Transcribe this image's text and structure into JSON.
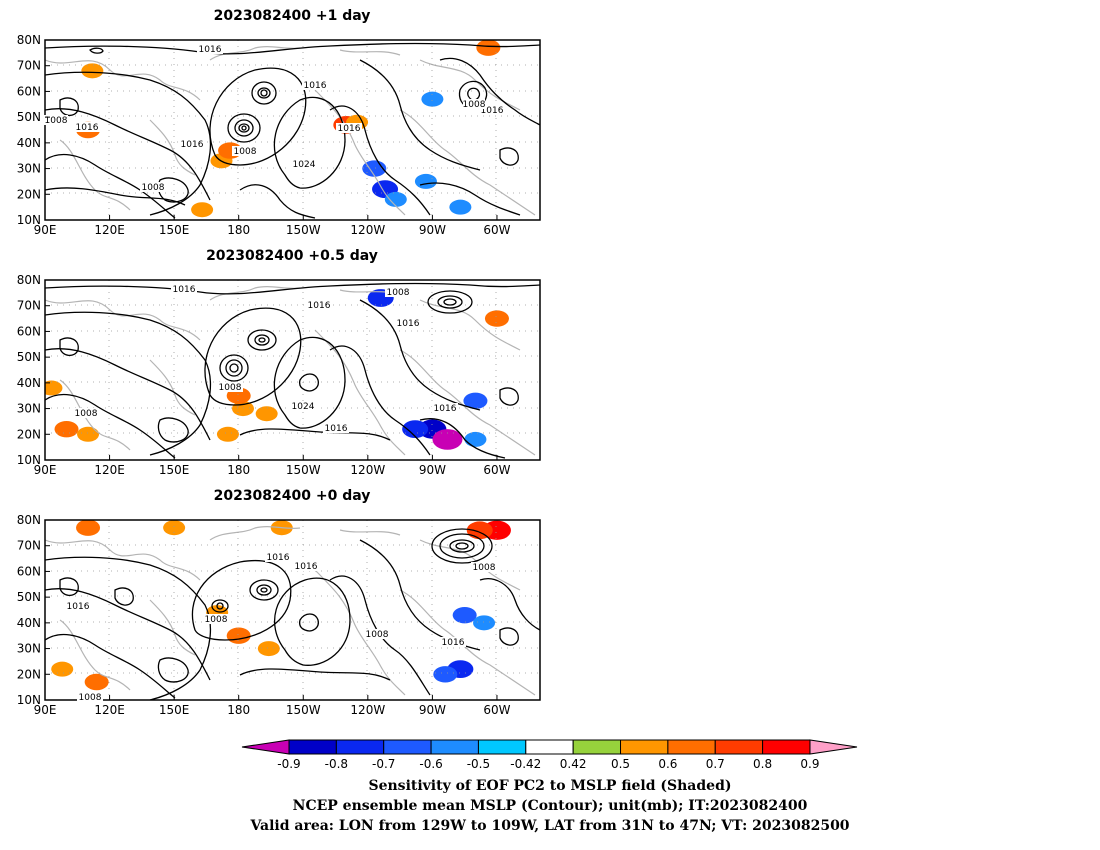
{
  "panels": [
    {
      "title": "2023082400  +1 day",
      "contour_labels": [
        "1016",
        "1016",
        "1008",
        "1016",
        "1016",
        "1016",
        "1008",
        "1024",
        "1016",
        "1008",
        "1016",
        "1008"
      ],
      "shading": [
        {
          "lon": 110,
          "lat": 45,
          "value": 0.6
        },
        {
          "lon": 112,
          "lat": 68,
          "value": 0.5
        },
        {
          "lon": 172,
          "lat": 33,
          "value": 0.5
        },
        {
          "lon": 176,
          "lat": 37,
          "value": 0.6
        },
        {
          "lon": 163,
          "lat": 14,
          "value": 0.5
        },
        {
          "lon": 230,
          "lat": 47,
          "value": 0.7
        },
        {
          "lon": 235,
          "lat": 48,
          "value": 0.5
        },
        {
          "lon": 243,
          "lat": 30,
          "value": -0.6
        },
        {
          "lon": 248,
          "lat": 22,
          "value": -0.7
        },
        {
          "lon": 253,
          "lat": 18,
          "value": -0.5
        },
        {
          "lon": 267,
          "lat": 25,
          "value": -0.5
        },
        {
          "lon": 283,
          "lat": 15,
          "value": -0.5
        },
        {
          "lon": 270,
          "lat": 57,
          "value": -0.5
        },
        {
          "lon": 296,
          "lat": 77,
          "value": 0.6
        }
      ]
    },
    {
      "title": "2023082400  +0.5 day",
      "contour_labels": [
        "1016",
        "1016",
        "1008",
        "1016",
        "1008",
        "1024",
        "1016",
        "1016",
        "1008"
      ],
      "shading": [
        {
          "lon": 93,
          "lat": 38,
          "value": 0.5
        },
        {
          "lon": 100,
          "lat": 22,
          "value": 0.6
        },
        {
          "lon": 110,
          "lat": 20,
          "value": 0.5
        },
        {
          "lon": 175,
          "lat": 20,
          "value": 0.5
        },
        {
          "lon": 182,
          "lat": 30,
          "value": 0.5
        },
        {
          "lon": 193,
          "lat": 28,
          "value": 0.5
        },
        {
          "lon": 180,
          "lat": 35,
          "value": 0.6
        },
        {
          "lon": 246,
          "lat": 73,
          "value": -0.7
        },
        {
          "lon": 270,
          "lat": 22,
          "value": -0.8
        },
        {
          "lon": 277,
          "lat": 18,
          "value": -0.9
        },
        {
          "lon": 262,
          "lat": 22,
          "value": -0.7
        },
        {
          "lon": 290,
          "lat": 33,
          "value": -0.6
        },
        {
          "lon": 290,
          "lat": 18,
          "value": -0.5
        },
        {
          "lon": 300,
          "lat": 65,
          "value": 0.6
        }
      ]
    },
    {
      "title": "2023082400  +0 day",
      "contour_labels": [
        "1016",
        "1016",
        "1016",
        "1008",
        "1008",
        "1016",
        "1008",
        "1008"
      ],
      "shading": [
        {
          "lon": 110,
          "lat": 77,
          "value": 0.6
        },
        {
          "lon": 150,
          "lat": 77,
          "value": 0.5
        },
        {
          "lon": 200,
          "lat": 77,
          "value": 0.5
        },
        {
          "lon": 98,
          "lat": 22,
          "value": 0.5
        },
        {
          "lon": 114,
          "lat": 17,
          "value": 0.6
        },
        {
          "lon": 180,
          "lat": 35,
          "value": 0.6
        },
        {
          "lon": 194,
          "lat": 30,
          "value": 0.5
        },
        {
          "lon": 170,
          "lat": 44,
          "value": 0.5
        },
        {
          "lon": 285,
          "lat": 43,
          "value": -0.6
        },
        {
          "lon": 294,
          "lat": 40,
          "value": -0.5
        },
        {
          "lon": 283,
          "lat": 22,
          "value": -0.7
        },
        {
          "lon": 276,
          "lat": 20,
          "value": -0.6
        },
        {
          "lon": 300,
          "lat": 76,
          "value": 0.8
        },
        {
          "lon": 292,
          "lat": 76,
          "value": 0.7
        }
      ]
    }
  ],
  "axes": {
    "x_ticks": [
      "90E",
      "120E",
      "150E",
      "180",
      "150W",
      "120W",
      "90W",
      "60W"
    ],
    "x_tick_lons": [
      90,
      120,
      150,
      180,
      210,
      240,
      270,
      300
    ],
    "y_ticks": [
      "10N",
      "20N",
      "30N",
      "40N",
      "50N",
      "60N",
      "70N",
      "80N"
    ],
    "y_tick_lats": [
      10,
      20,
      30,
      40,
      50,
      60,
      70,
      80
    ],
    "lon_range": [
      90,
      320
    ],
    "lat_range": [
      10,
      80
    ]
  },
  "colorbar": {
    "labels": [
      "-0.9",
      "-0.8",
      "-0.7",
      "-0.6",
      "-0.5",
      "-0.42",
      "0.42",
      "0.5",
      "0.6",
      "0.7",
      "0.8",
      "0.9"
    ],
    "colors": [
      "#0000c8",
      "#0a28f0",
      "#1e5aff",
      "#1e8cff",
      "#00c8ff",
      "#ffffff",
      "#96d23c",
      "#ff9600",
      "#ff6e00",
      "#ff3c00",
      "#ff0000"
    ],
    "low_end_color": "#c800b4",
    "high_end_color": "#ffa0c8"
  },
  "caption": [
    "Sensitivity of EOF PC2 to MSLP field (Shaded)",
    "NCEP ensemble mean MSLP (Contour); unit(mb); IT:2023082400",
    "Valid area: LON from 129W to 109W, LAT from 31N to 47N; VT: 2023082500"
  ]
}
